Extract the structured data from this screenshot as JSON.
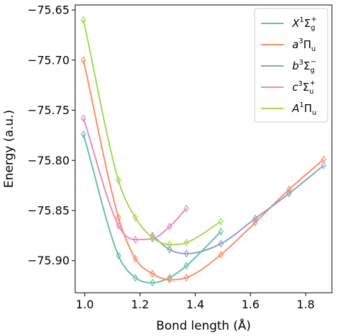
{
  "chart_data": {
    "type": "line",
    "xlabel": "Bond length (Å)",
    "ylabel": "Energy (a.u.)",
    "xlim": [
      0.965,
      1.895
    ],
    "ylim": [
      -75.932,
      -75.645
    ],
    "xticks": [
      1.0,
      1.2,
      1.4,
      1.6,
      1.8
    ],
    "xtick_labels": [
      "1.0",
      "1.2",
      "1.4",
      "1.6",
      "1.8"
    ],
    "yticks": [
      -75.65,
      -75.7,
      -75.75,
      -75.8,
      -75.85,
      -75.9
    ],
    "ytick_labels": [
      "−75.65",
      "−75.70",
      "−75.75",
      "−75.80",
      "−75.85",
      "−75.90"
    ],
    "grid": false,
    "legend_position": "top-right",
    "series": [
      {
        "name": "X1Σg+",
        "legend": {
          "base": "X",
          "sup": "1",
          "greek": "Σ",
          "sub": "g",
          "sup2": "+"
        },
        "color": "#66c2a5",
        "x": [
          0.995,
          1.122,
          1.183,
          1.245,
          1.307,
          1.368,
          1.493
        ],
        "y": [
          -75.774,
          -75.895,
          -75.917,
          -75.922,
          -75.917,
          -75.905,
          -75.871
        ]
      },
      {
        "name": "a3Πu",
        "legend": {
          "base": "a",
          "sup": "3",
          "greek": "Π",
          "sub": "u",
          "sup2": ""
        },
        "color": "#fc8d62",
        "x": [
          0.995,
          1.122,
          1.183,
          1.245,
          1.307,
          1.368,
          1.493,
          1.617,
          1.74,
          1.865
        ],
        "y": [
          -75.7,
          -75.857,
          -75.898,
          -75.913,
          -75.919,
          -75.917,
          -75.894,
          -75.862,
          -75.829,
          -75.799
        ]
      },
      {
        "name": "b3Σg−",
        "legend": {
          "base": "b",
          "sup": "3",
          "greek": "Σ",
          "sub": "g",
          "sup2": "−"
        },
        "color": "#8da0cb",
        "x": [
          1.245,
          1.307,
          1.368,
          1.493,
          1.617,
          1.74,
          1.865
        ],
        "y": [
          -75.875,
          -75.889,
          -75.893,
          -75.883,
          -75.858,
          -75.833,
          -75.805
        ]
      },
      {
        "name": "c3Σu+",
        "legend": {
          "base": "c",
          "sup": "3",
          "greek": "Σ",
          "sub": "u",
          "sup2": "+"
        },
        "color": "#e78ac3",
        "x": [
          0.995,
          1.122,
          1.183,
          1.245,
          1.307,
          1.368
        ],
        "y": [
          -75.758,
          -75.865,
          -75.879,
          -75.878,
          -75.866,
          -75.848
        ]
      },
      {
        "name": "A1Πu",
        "legend": {
          "base": "A",
          "sup": "1",
          "greek": "Π",
          "sub": "u",
          "sup2": ""
        },
        "color": "#a6d854",
        "x": [
          0.995,
          1.122,
          1.183,
          1.245,
          1.307,
          1.368,
          1.493
        ],
        "y": [
          -75.66,
          -75.82,
          -75.857,
          -75.877,
          -75.884,
          -75.882,
          -75.861
        ]
      }
    ]
  }
}
